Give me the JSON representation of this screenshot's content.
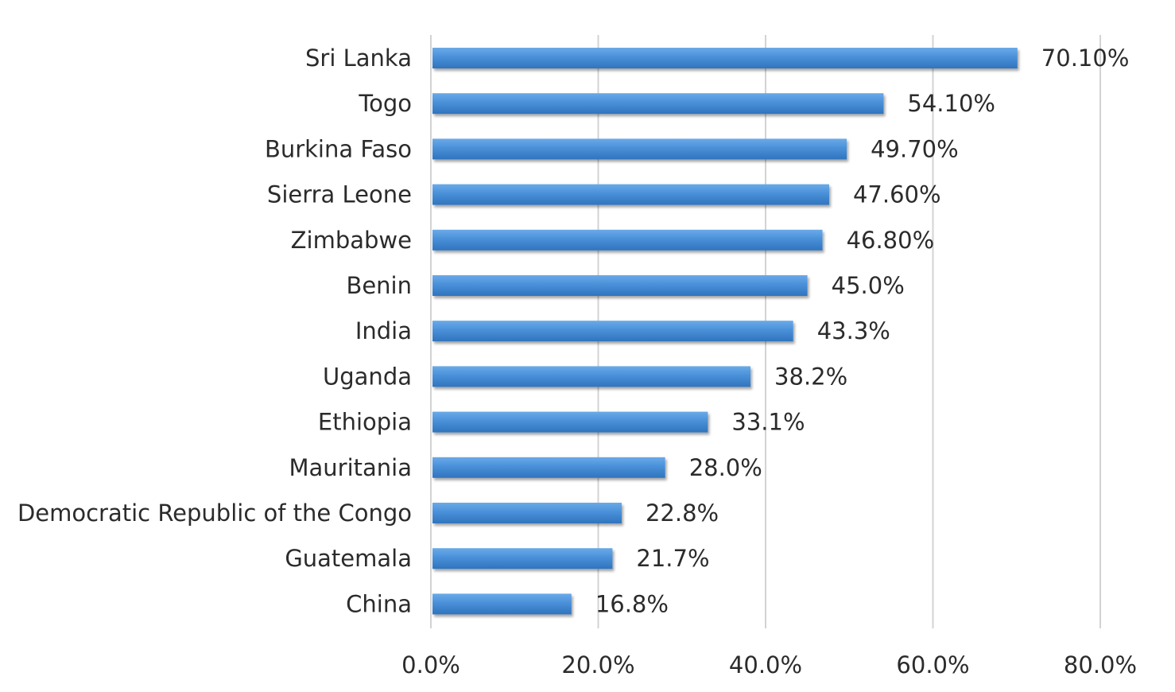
{
  "chart_data": {
    "type": "bar",
    "orientation": "horizontal",
    "title": "",
    "xlabel": "",
    "ylabel": "",
    "categories": [
      "Sri Lanka",
      "Togo",
      "Burkina Faso",
      "Sierra Leone",
      "Zimbabwe",
      "Benin",
      "India",
      "Uganda",
      "Ethiopia",
      "Mauritania",
      "Democratic Republic of the Congo",
      "Guatemala",
      "China"
    ],
    "values": [
      70.1,
      54.1,
      49.7,
      47.6,
      46.8,
      45.0,
      43.3,
      38.2,
      33.1,
      28.0,
      22.8,
      21.7,
      16.8
    ],
    "value_labels": [
      "70.10%",
      "54.10%",
      "49.70%",
      "47.60%",
      "46.80%",
      "45.0%",
      "43.3%",
      "38.2%",
      "33.1%",
      "28.0%",
      "22.8%",
      "21.7%",
      "16.8%"
    ],
    "xlim": [
      0,
      80
    ],
    "x_ticks": [
      0,
      20,
      40,
      60,
      80
    ],
    "x_tick_labels": [
      "0.0%",
      "20.0%",
      "40.0%",
      "60.0%",
      "80.0%"
    ],
    "grid": "vertical",
    "legend": "none",
    "bar_color": "#4a90d9",
    "bar_color_light": "#6aaae8",
    "bar_color_dark": "#2f74bd"
  }
}
